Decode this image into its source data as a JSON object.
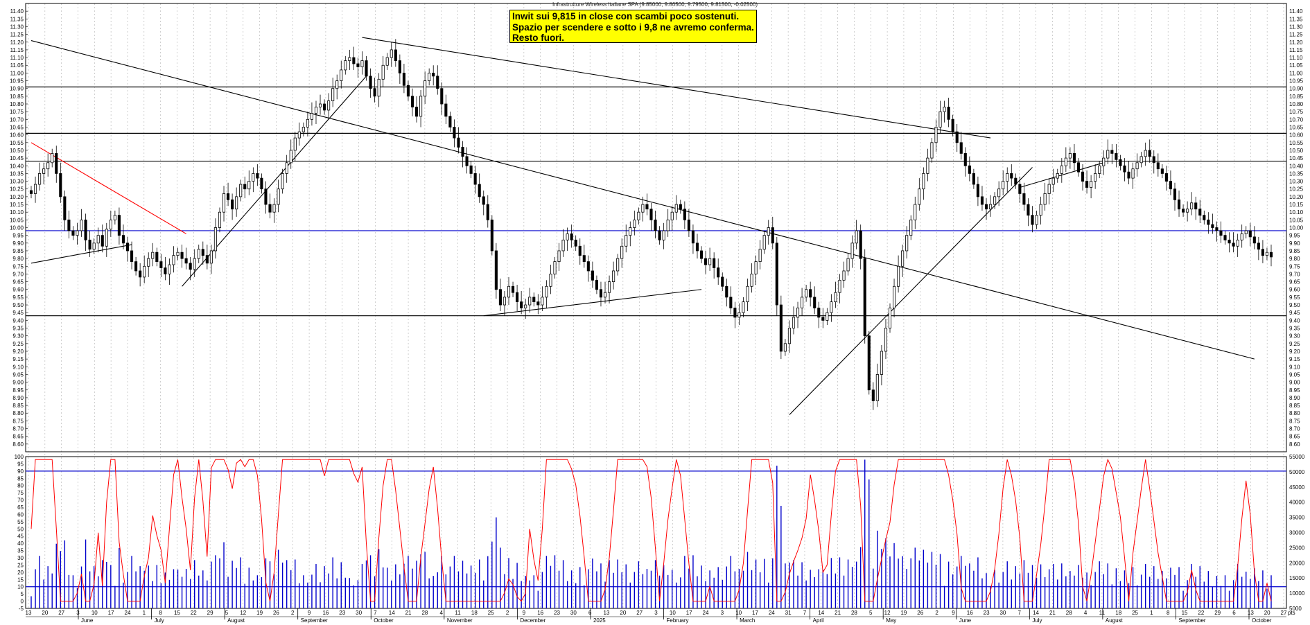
{
  "chart_data": [
    {
      "type": "candlestick",
      "title": "Infrastrutture Wireless Italiane SPA (9.85000, 9.86500, 9.79500, 9.81500, -0.02500)",
      "ylim": [
        8.55,
        11.45
      ],
      "y_ticks": [
        "11.40",
        "11.35",
        "11.30",
        "11.25",
        "11.20",
        "11.15",
        "11.10",
        "11.05",
        "11.00",
        "10.95",
        "10.90",
        "10.85",
        "10.80",
        "10.75",
        "10.70",
        "10.65",
        "10.60",
        "10.55",
        "10.50",
        "10.45",
        "10.40",
        "10.35",
        "10.30",
        "10.25",
        "10.20",
        "10.15",
        "10.10",
        "10.05",
        "10.00",
        "9.95",
        "9.90",
        "9.85",
        "9.80",
        "9.75",
        "9.70",
        "9.65",
        "9.60",
        "9.55",
        "9.50",
        "9.45",
        "9.40",
        "9.35",
        "9.30",
        "9.25",
        "9.20",
        "9.15",
        "9.10",
        "9.05",
        "9.00",
        "8.95",
        "8.90",
        "8.85",
        "8.80",
        "8.75",
        "8.70",
        "8.65",
        "8.60"
      ],
      "grid": "vertical dotted",
      "annotation": [
        "Inwit sui 9,815 in close con scambi poco sostenuti.",
        "Spazio per scendere e sotto i 9,8 ne avremo conferma.",
        "Resto fuori."
      ],
      "horizontal_levels": [
        {
          "y": 10.91,
          "color": "#000000"
        },
        {
          "y": 10.61,
          "color": "#000000"
        },
        {
          "y": 10.43,
          "color": "#000000"
        },
        {
          "y": 9.98,
          "color": "#0000cc"
        },
        {
          "y": 9.43,
          "color": "#000000"
        }
      ],
      "trendlines": [
        {
          "from": [
            0,
            11.21
          ],
          "to": [
            292,
            9.15
          ],
          "color": "#000000"
        },
        {
          "from": [
            79,
            11.23
          ],
          "to": [
            229,
            10.58
          ],
          "color": "#000000"
        },
        {
          "from": [
            0,
            10.55
          ],
          "to": [
            37,
            9.96
          ],
          "color": "#ff0000"
        },
        {
          "from": [
            0,
            9.77
          ],
          "to": [
            24,
            9.89
          ],
          "color": "#000000"
        },
        {
          "from": [
            36,
            9.62
          ],
          "to": [
            80,
            10.98
          ],
          "color": "#000000"
        },
        {
          "from": [
            108,
            9.43
          ],
          "to": [
            160,
            9.6
          ],
          "color": "#000000"
        },
        {
          "from": [
            181,
            8.79
          ],
          "to": [
            239,
            10.39
          ],
          "color": "#000000"
        },
        {
          "from": [
            236,
            10.26
          ],
          "to": [
            256,
            10.42
          ],
          "color": "#000000"
        }
      ],
      "closes": [
        10.22,
        10.28,
        10.35,
        10.38,
        10.42,
        10.48,
        10.35,
        10.2,
        10.05,
        9.98,
        9.95,
        9.98,
        10.05,
        9.92,
        9.86,
        9.9,
        9.95,
        9.88,
        9.99,
        10.05,
        10.08,
        9.95,
        9.9,
        9.85,
        9.78,
        9.72,
        9.68,
        9.75,
        9.8,
        9.84,
        9.78,
        9.74,
        9.7,
        9.76,
        9.82,
        9.84,
        9.8,
        9.77,
        9.73,
        9.8,
        9.86,
        9.82,
        9.77,
        9.85,
        10.0,
        10.1,
        10.22,
        10.18,
        10.12,
        10.2,
        10.28,
        10.25,
        10.3,
        10.35,
        10.32,
        10.25,
        10.15,
        10.1,
        10.15,
        10.25,
        10.35,
        10.42,
        10.5,
        10.58,
        10.62,
        10.65,
        10.7,
        10.74,
        10.78,
        10.8,
        10.76,
        10.82,
        10.9,
        10.95,
        11.02,
        11.08,
        11.1,
        11.06,
        11.04,
        11.08,
        10.98,
        10.9,
        10.85,
        10.96,
        11.05,
        11.1,
        11.15,
        11.08,
        11.0,
        10.92,
        10.85,
        10.78,
        10.72,
        10.85,
        10.95,
        11.0,
        10.98,
        10.9,
        10.8,
        10.72,
        10.65,
        10.58,
        10.52,
        10.46,
        10.4,
        10.35,
        10.28,
        10.2,
        10.15,
        10.05,
        9.85,
        9.6,
        9.5,
        9.55,
        9.62,
        9.58,
        9.52,
        9.48,
        9.5,
        9.55,
        9.52,
        9.5,
        9.55,
        9.62,
        9.7,
        9.78,
        9.85,
        9.92,
        9.96,
        9.92,
        9.88,
        9.82,
        9.78,
        9.72,
        9.66,
        9.6,
        9.55,
        9.58,
        9.65,
        9.72,
        9.8,
        9.88,
        9.95,
        10.0,
        10.05,
        10.1,
        10.15,
        10.12,
        10.05,
        9.98,
        9.92,
        9.98,
        10.05,
        10.1,
        10.15,
        10.12,
        10.05,
        9.98,
        9.9,
        9.85,
        9.8,
        9.76,
        9.8,
        9.74,
        9.68,
        9.62,
        9.55,
        9.48,
        9.42,
        9.45,
        9.52,
        9.62,
        9.7,
        9.78,
        9.86,
        9.95,
        10.0,
        9.9,
        9.5,
        9.2,
        9.25,
        9.35,
        9.42,
        9.48,
        9.55,
        9.6,
        9.55,
        9.48,
        9.42,
        9.4,
        9.45,
        9.52,
        9.58,
        9.66,
        9.72,
        9.8,
        9.9,
        9.98,
        9.8,
        9.3,
        8.95,
        8.88,
        9.05,
        9.2,
        9.35,
        9.48,
        9.62,
        9.75,
        9.85,
        9.95,
        10.05,
        10.15,
        10.25,
        10.35,
        10.45,
        10.55,
        10.65,
        10.75,
        10.78,
        10.7,
        10.62,
        10.55,
        10.48,
        10.4,
        10.35,
        10.28,
        10.2,
        10.15,
        10.12,
        10.15,
        10.2,
        10.25,
        10.3,
        10.35,
        10.32,
        10.28,
        10.22,
        10.15,
        10.08,
        10.02,
        10.08,
        10.15,
        10.22,
        10.28,
        10.32,
        10.35,
        10.4,
        10.45,
        10.48,
        10.42,
        10.36,
        10.3,
        10.26,
        10.3,
        10.35,
        10.4,
        10.45,
        10.5,
        10.48,
        10.44,
        10.4,
        10.36,
        10.32,
        10.38,
        10.42,
        10.46,
        10.5,
        10.46,
        10.42,
        10.38,
        10.35,
        10.3,
        10.25,
        10.18,
        10.12,
        10.1,
        10.12,
        10.16,
        10.12,
        10.08,
        10.05,
        10.02,
        10.0,
        9.98,
        9.95,
        9.92,
        9.9,
        9.88,
        9.92,
        9.96,
        9.98,
        9.94,
        9.9,
        9.86,
        9.82,
        9.84,
        9.81
      ]
    },
    {
      "type": "bar+line",
      "ylim_left": [
        -5,
        100
      ],
      "y_ticks_left": [
        "100",
        "95",
        "90",
        "85",
        "80",
        "75",
        "70",
        "65",
        "60",
        "55",
        "50",
        "45",
        "40",
        "35",
        "30",
        "25",
        "20",
        "15",
        "10",
        "5",
        "0",
        "-5"
      ],
      "ylim_right": [
        5000,
        55000
      ],
      "y_ticks_right": [
        "55000",
        "50000",
        "45000",
        "40000",
        "35000",
        "30000",
        "25000",
        "20000",
        "15000",
        "10000",
        "5000"
      ],
      "levels": [
        {
          "y": 90,
          "color": "#0000cc"
        },
        {
          "y": 10,
          "color": "#0000cc"
        }
      ],
      "oscillator_color": "#ff0000",
      "volume_color": "#0000cc"
    }
  ],
  "x_axis": {
    "day_ticks": [
      "13",
      "20",
      "27",
      "3",
      "10",
      "17",
      "24",
      "1",
      "8",
      "15",
      "22",
      "29",
      "5",
      "12",
      "19",
      "26",
      "2",
      "9",
      "16",
      "23",
      "30",
      "7",
      "14",
      "21",
      "28",
      "4",
      "11",
      "18",
      "25",
      "2",
      "9",
      "16",
      "23",
      "30",
      "6",
      "13",
      "20",
      "27",
      "3",
      "10",
      "17",
      "24",
      "3",
      "10",
      "17",
      "24",
      "31",
      "7",
      "14",
      "21",
      "28",
      "5",
      "12",
      "19",
      "26",
      "2",
      "9",
      "16",
      "23",
      "30",
      "7",
      "14",
      "21",
      "28",
      "4",
      "11",
      "18",
      "25",
      "1",
      "8",
      "15",
      "22",
      "29",
      "6",
      "13",
      "20",
      "27"
    ],
    "month_labels": [
      "June",
      "July",
      "August",
      "September",
      "October",
      "November",
      "December",
      "2025",
      "February",
      "March",
      "April",
      "May",
      "June",
      "July",
      "August",
      "September",
      "October"
    ]
  },
  "corner_label": "pts"
}
